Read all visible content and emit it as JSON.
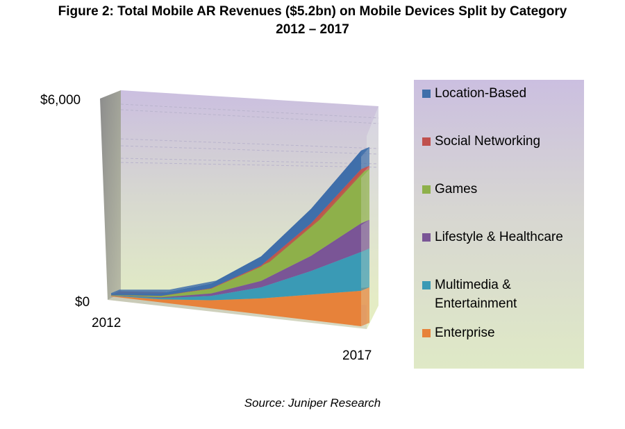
{
  "figure": {
    "title_line1": "Figure 2: Total Mobile AR Revenues ($5.2bn) on Mobile Devices Split by Category",
    "title_line2": "2012 – 2017",
    "source": "Source: Juniper Research"
  },
  "chart_data": {
    "type": "area",
    "stacked": true,
    "three_d": true,
    "x": [
      2012,
      2013,
      2014,
      2015,
      2016,
      2017
    ],
    "x_tick_labels": [
      "2012",
      "2017"
    ],
    "y_tick_labels": [
      "$0",
      "$6,000"
    ],
    "ylim": [
      0,
      6000
    ],
    "legend_position": "right",
    "series": [
      {
        "name": "Enterprise",
        "color": "#e7823a",
        "values": [
          20,
          90,
          240,
          470,
          760,
          1050
        ]
      },
      {
        "name": "Multimedia & Entertainment",
        "color": "#3a9ab5",
        "values": [
          10,
          40,
          130,
          330,
          700,
          1150
        ]
      },
      {
        "name": "Lifestyle & Healthcare",
        "color": "#7a5596",
        "values": [
          5,
          20,
          70,
          190,
          450,
          850
        ]
      },
      {
        "name": "Games",
        "color": "#8eb04a",
        "values": [
          10,
          40,
          140,
          420,
          900,
          1500
        ]
      },
      {
        "name": "Social Networking",
        "color": "#c0504d",
        "values": [
          2,
          5,
          15,
          35,
          60,
          100
        ]
      },
      {
        "name": "Location-Based",
        "color": "#3f6faa",
        "values": [
          50,
          80,
          140,
          270,
          430,
          550
        ]
      }
    ]
  },
  "legend": {
    "items": [
      {
        "label": "Location-Based",
        "color": "#3f6faa"
      },
      {
        "label": "Social Networking",
        "color": "#c0504d"
      },
      {
        "label": "Games",
        "color": "#8eb04a"
      },
      {
        "label": "Lifestyle & Healthcare",
        "color": "#7a5596"
      },
      {
        "label": "Multimedia & Entertainment",
        "color": "#3a9ab5"
      },
      {
        "label": "Enterprise",
        "color": "#e7823a"
      }
    ]
  }
}
